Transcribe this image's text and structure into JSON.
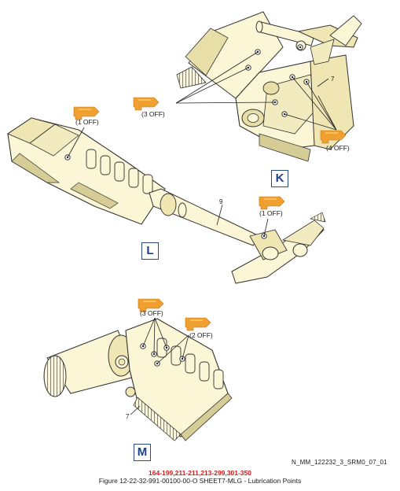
{
  "colors": {
    "part_fill": "#fbf6d6",
    "part_shade": "#d6cd96",
    "outline": "#333333",
    "lube_symbol": "#f0a030",
    "view_label": "#1c3f8f",
    "effectivity": "#d21c1c"
  },
  "view_k": {
    "label": "K",
    "callout_off_3": "(3 OFF)",
    "callout_off_4": "(4 OFF)",
    "ref_number": "7"
  },
  "view_l": {
    "label": "L",
    "callout_off_1_left": "(1 OFF)",
    "callout_off_1_right": "(1 OFF)",
    "ref_number": "9"
  },
  "view_m": {
    "label": "M",
    "callout_off_3": "(3 OFF)",
    "callout_off_2": "(2 OFF)",
    "ref_number": "7"
  },
  "lube_symbol_icon": "grease-gun-lubrication-symbol-icon",
  "drawing_id": "N_MM_122232_3_SRM0_07_01",
  "effectivity": "164-199,211-211,213-299,301-350",
  "caption": "Figure 12-22-32-991-00100-00-O SHEET7-MLG - Lubrication Points"
}
